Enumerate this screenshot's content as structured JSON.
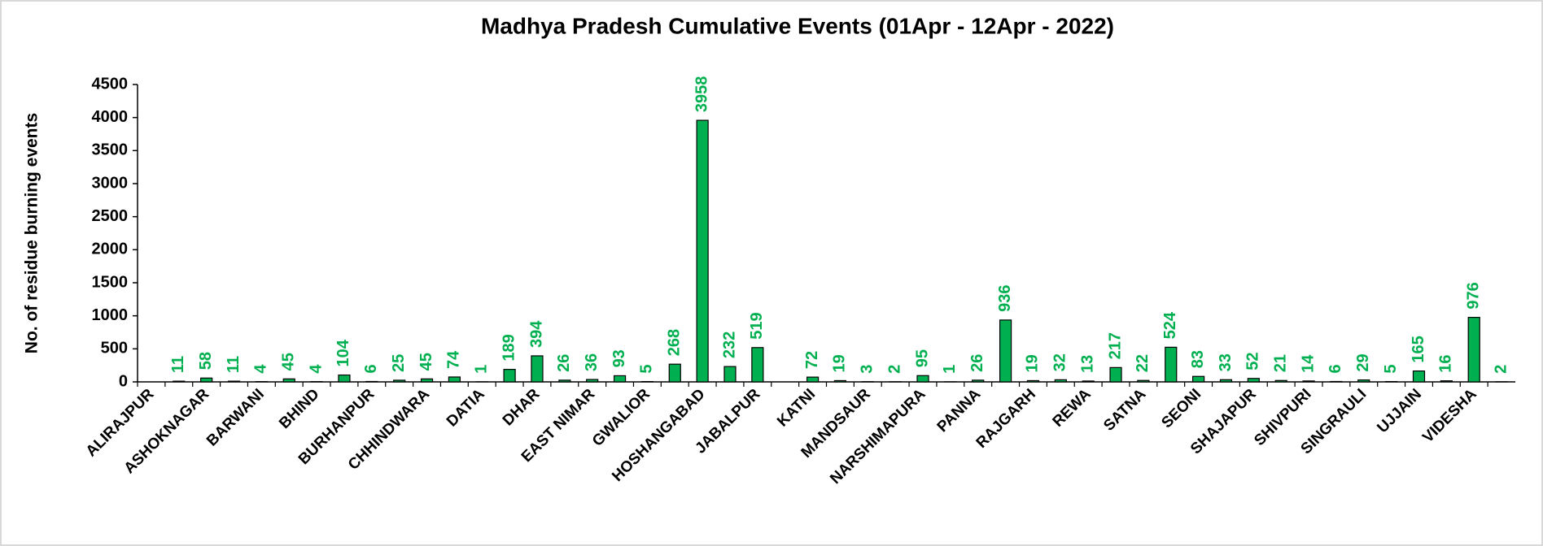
{
  "chart_data": {
    "type": "bar",
    "title": "Madhya Pradesh Cumulative Events (01Apr - 12Apr - 2022)",
    "y_label": "No. of residue burning events",
    "categories": [
      "ALIRAJPUR",
      null,
      "ASHOKNAGAR",
      null,
      "BARWANI",
      null,
      "BHIND",
      null,
      "BURHANPUR",
      null,
      "CHHINDWARA",
      null,
      "DATIA",
      null,
      "DHAR",
      null,
      "EAST NIMAR",
      null,
      "GWALIOR",
      null,
      "HOSHANGABAD",
      null,
      "JABALPUR",
      null,
      "KATNI",
      null,
      "MANDSAUR",
      null,
      "NARSHIMAPURA",
      null,
      "PANNA",
      null,
      "RAJGARH",
      null,
      "REWA",
      null,
      "SATNA",
      null,
      "SEONI",
      null,
      "SHAJAPUR",
      null,
      "SHIVPURI",
      null,
      "SINGRAULI",
      null,
      "UJJAIN",
      null,
      "VIDESHA",
      null
    ],
    "values": [
      null,
      11,
      58,
      11,
      4,
      45,
      4,
      104,
      6,
      25,
      45,
      74,
      1,
      189,
      394,
      26,
      36,
      93,
      5,
      268,
      3958,
      232,
      519,
      null,
      72,
      19,
      3,
      2,
      95,
      1,
      26,
      936,
      19,
      32,
      13,
      217,
      22,
      524,
      83,
      33,
      52,
      21,
      14,
      6,
      29,
      5,
      165,
      16,
      976,
      2
    ],
    "color": "#00b050",
    "label_color": "#00b050",
    "ylim": [
      0,
      4500
    ],
    "yticks": [
      0,
      500,
      1000,
      1500,
      2000,
      2500,
      3000,
      3500,
      4000,
      4500
    ],
    "grid": false
  }
}
